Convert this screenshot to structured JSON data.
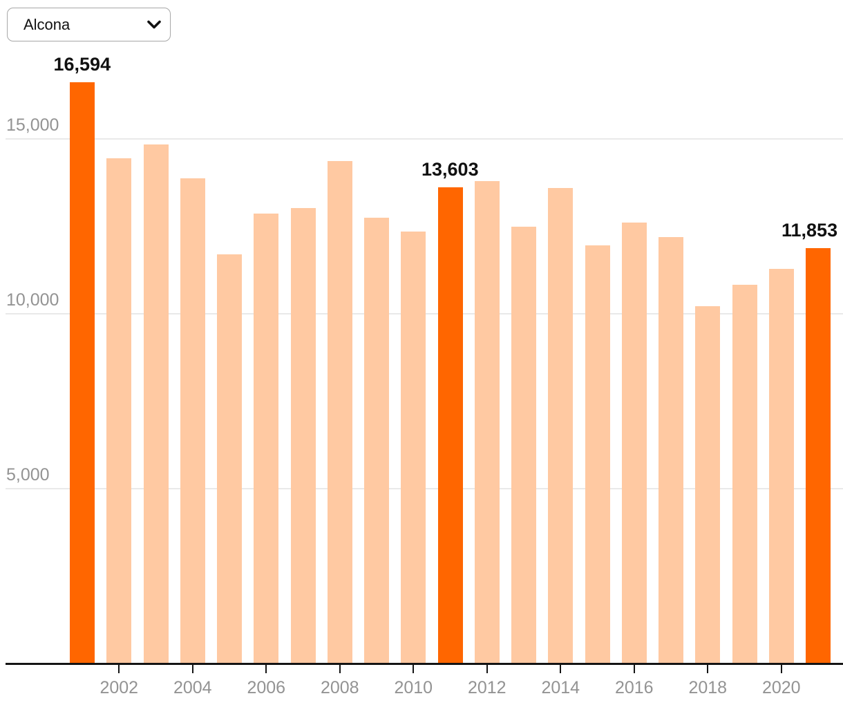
{
  "dropdown": {
    "value": "Alcona"
  },
  "chart_data": {
    "type": "bar",
    "title": "",
    "xlabel": "",
    "ylabel": "",
    "x_years": [
      2001,
      2002,
      2003,
      2004,
      2005,
      2006,
      2007,
      2008,
      2009,
      2010,
      2011,
      2012,
      2013,
      2014,
      2015,
      2016,
      2017,
      2018,
      2019,
      2020,
      2021
    ],
    "values": [
      16594,
      14420,
      14830,
      13850,
      11690,
      12850,
      13000,
      14350,
      12720,
      12340,
      13603,
      13770,
      12470,
      13580,
      11930,
      12590,
      12180,
      10200,
      10810,
      11270,
      11853
    ],
    "highlights": [
      {
        "year": 2001,
        "value": 16594,
        "label": "16,594"
      },
      {
        "year": 2011,
        "value": 13603,
        "label": "13,603"
      },
      {
        "year": 2021,
        "value": 11853,
        "label": "11,853"
      }
    ],
    "y_ticks": [
      {
        "value": 5000,
        "label": "5,000"
      },
      {
        "value": 10000,
        "label": "10,000"
      },
      {
        "value": 15000,
        "label": "15,000"
      }
    ],
    "x_tick_years": [
      2002,
      2004,
      2006,
      2008,
      2010,
      2012,
      2014,
      2016,
      2018,
      2020
    ],
    "ylim": [
      0,
      17500
    ],
    "grid": "horizontal",
    "legend": "none",
    "colors": {
      "bar": "#FFC9A2",
      "highlight": "#FF6600",
      "gridline": "#E9E9E9",
      "axis": "#141414",
      "tick_label": "#939393",
      "value_label": "#111111"
    }
  }
}
